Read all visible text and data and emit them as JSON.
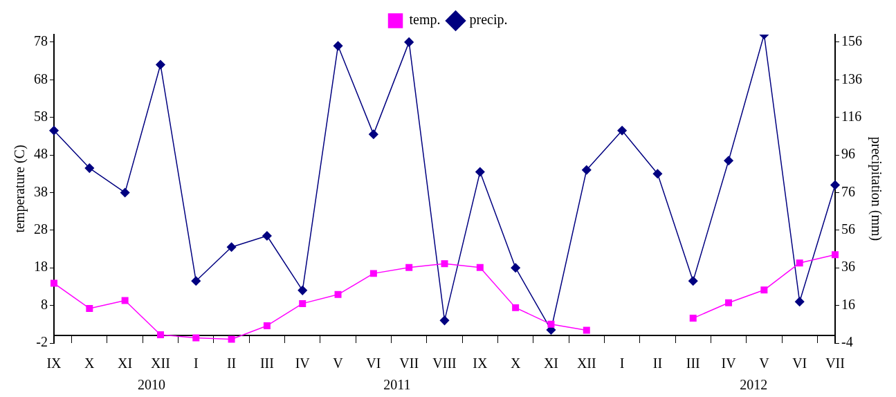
{
  "chart_data": {
    "type": "line",
    "ylabel": "temperature (C)",
    "y2label": "precipitation (mm)",
    "categories": [
      "IX",
      "X",
      "XI",
      "XII",
      "I",
      "II",
      "III",
      "IV",
      "V",
      "VI",
      "VII",
      "VIII",
      "IX",
      "X",
      "XI",
      "XII",
      "I",
      "II",
      "III",
      "IV",
      "V",
      "VI",
      "VII"
    ],
    "series": [
      {
        "name": "temp.",
        "color": "#ff00ff",
        "marker": "square",
        "values": [
          13.9,
          7.2,
          9.3,
          0.2,
          -0.6,
          -1,
          2.6,
          8.5,
          10.9,
          16.5,
          18.1,
          19.1,
          18.1,
          7.4,
          3.0,
          1.4,
          null,
          null,
          4.6,
          8.7,
          12.1,
          19.3,
          21.5
        ]
      },
      {
        "name": "precip.",
        "color": "#000080",
        "marker": "diamond",
        "axis": "y2",
        "values": [
          109,
          89,
          76,
          144,
          29,
          47,
          53,
          24,
          154,
          107,
          156,
          8,
          87,
          36,
          3,
          88,
          109,
          86,
          29,
          93,
          160,
          18,
          80
        ]
      }
    ],
    "ylim": [
      -2,
      80
    ],
    "yticks": [
      -2,
      8,
      18,
      28,
      38,
      48,
      58,
      68,
      78
    ],
    "y2lim": [
      -4,
      160
    ],
    "y2ticks": [
      -4,
      16,
      36,
      56,
      76,
      96,
      116,
      136,
      156
    ],
    "grid": false,
    "legend": "top",
    "line_style": "solid",
    "annotations": [
      "2010",
      "2011",
      "2012"
    ]
  }
}
